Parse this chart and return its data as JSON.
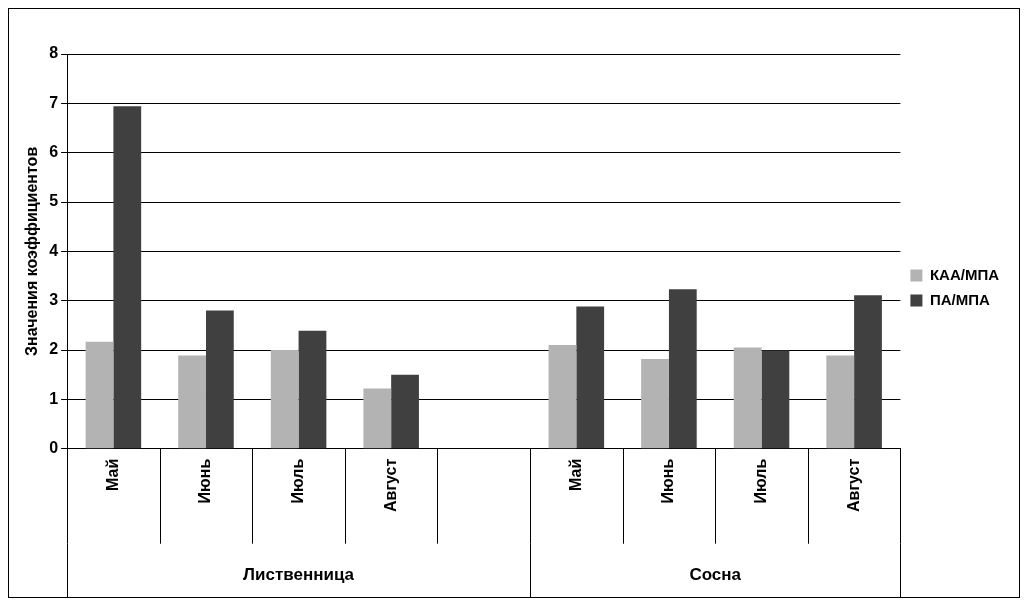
{
  "chart_data": {
    "type": "bar",
    "ylabel": "Значения коэффициентов",
    "categories": [
      "Май",
      "Июнь",
      "Июль",
      "Август",
      null,
      "Май",
      "Июнь",
      "Июль",
      "Август"
    ],
    "series": [
      {
        "name": "КАА/МПА",
        "color": "#b3b3b3",
        "values": [
          2.17,
          1.89,
          2.0,
          1.22,
          null,
          2.1,
          1.82,
          2.05,
          1.89
        ]
      },
      {
        "name": "ПА/МПА",
        "color": "#404040",
        "values": [
          6.94,
          2.8,
          2.39,
          1.5,
          null,
          2.88,
          3.23,
          1.99,
          3.11
        ]
      }
    ],
    "annotations": [
      "Лиственница",
      "Сосна"
    ],
    "ylim": [
      0,
      8
    ],
    "yticks": [
      0,
      1,
      2,
      3,
      4,
      5,
      6,
      7,
      8
    ],
    "grid": "y",
    "legend": "right"
  }
}
